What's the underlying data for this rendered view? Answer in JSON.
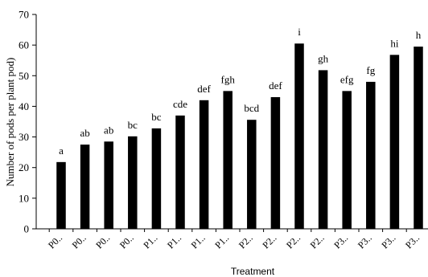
{
  "chart_data": {
    "type": "bar",
    "xlabel": "Treatment",
    "ylabel": "Number of pods per plant pod)",
    "ylim": [
      0,
      70
    ],
    "yticks": [
      0,
      10,
      20,
      30,
      40,
      50,
      60,
      70
    ],
    "grid": false,
    "categories": [
      "P0..",
      "P0..",
      "P0..",
      "P0..",
      "P1..",
      "P1..",
      "P1..",
      "P1..",
      "P2..",
      "P2..",
      "P2..",
      "P2..",
      "P3..",
      "P3..",
      "P3..",
      "P3.."
    ],
    "values": [
      21.8,
      27.5,
      28.5,
      30.2,
      32.8,
      37.0,
      42.0,
      45.0,
      35.6,
      43.0,
      60.5,
      51.8,
      45.0,
      48.0,
      56.8,
      59.5
    ],
    "significance_labels": [
      "a",
      "ab",
      "ab",
      "bc",
      "bc",
      "cde",
      "def",
      "fgh",
      "bcd",
      "def",
      "i",
      "gh",
      "efg",
      "fg",
      "hi",
      "h"
    ],
    "bar_color": "#000000"
  }
}
